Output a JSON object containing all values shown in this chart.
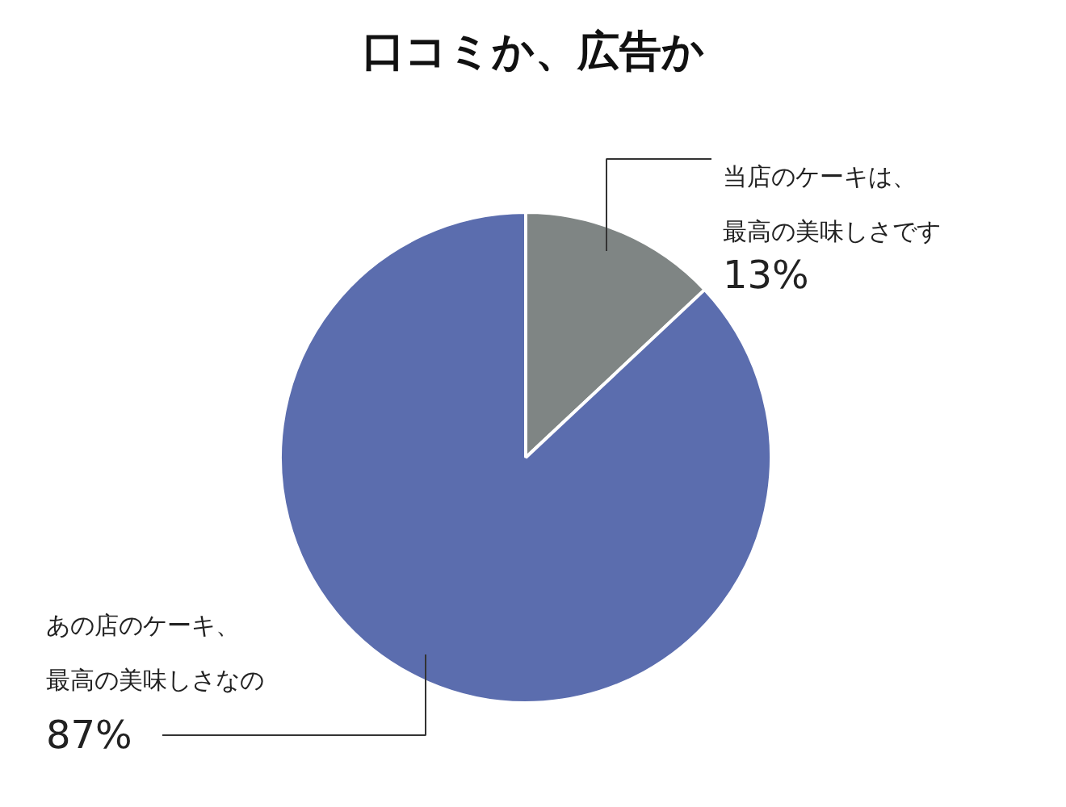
{
  "chart_data": {
    "type": "pie",
    "title": "口コミか、広告か",
    "categories": [
      "当店のケーキは、最高の美味しさです",
      "あの店のケーキ、最高の美味しさなの"
    ],
    "values": [
      13,
      87
    ],
    "colors": [
      "#7f8584",
      "#5b6dae"
    ],
    "value_labels": [
      "13%",
      "87%"
    ]
  }
}
